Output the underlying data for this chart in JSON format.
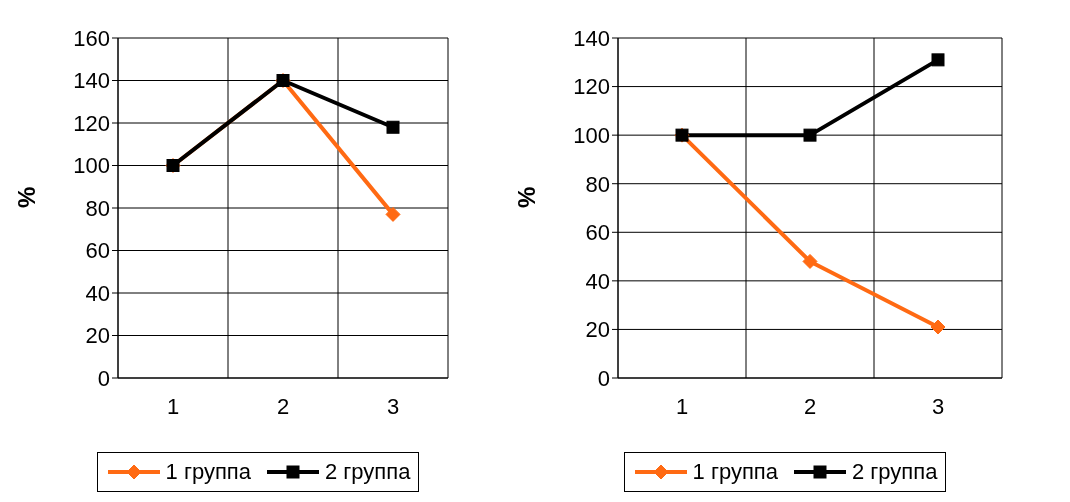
{
  "chart_data": [
    {
      "type": "line",
      "ylabel": "%",
      "categories": [
        "1",
        "2",
        "3"
      ],
      "ylim": [
        0,
        160
      ],
      "yticks": [
        0,
        20,
        40,
        60,
        80,
        100,
        120,
        140,
        160
      ],
      "grid": true,
      "legend": "bottom",
      "series": [
        {
          "name": "1 группа",
          "color": "#ff6a13",
          "marker": "diamond",
          "values": [
            100,
            140,
            77
          ]
        },
        {
          "name": "2 группа",
          "color": "#000000",
          "marker": "square",
          "values": [
            100,
            140,
            118
          ]
        }
      ]
    },
    {
      "type": "line",
      "ylabel": "%",
      "categories": [
        "1",
        "2",
        "3"
      ],
      "ylim": [
        0,
        140
      ],
      "yticks": [
        0,
        20,
        40,
        60,
        80,
        100,
        120,
        140
      ],
      "grid": true,
      "legend": "bottom",
      "series": [
        {
          "name": "1 группа",
          "color": "#ff6a13",
          "marker": "diamond",
          "values": [
            100,
            48,
            21
          ]
        },
        {
          "name": "2 группа",
          "color": "#000000",
          "marker": "square",
          "values": [
            100,
            100,
            131
          ]
        }
      ]
    }
  ]
}
